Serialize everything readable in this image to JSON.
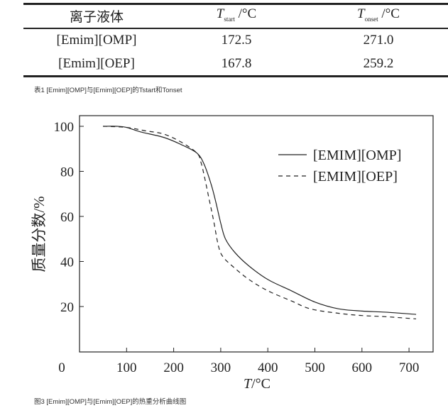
{
  "table": {
    "headers": [
      "离子液体",
      "T",
      "start",
      "/°C",
      "T",
      "onset",
      "/°C"
    ],
    "rows": [
      [
        "[Emim][OMP]",
        "172.5",
        "271.0"
      ],
      [
        "[Emim][OEP]",
        "167.8",
        "259.2"
      ]
    ],
    "caption": "表1 [Emim][OMP]与[Emim][OEP]的Tstart和Tonset"
  },
  "figure_caption": "图3 [Emim][OMP]与[Emim][OEP]的热重分析曲线图",
  "chart_data": {
    "type": "line",
    "xlabel_italic": "T",
    "xlabel_unit": "/°C",
    "ylabel": "质量分数/%",
    "xlim": [
      0,
      750
    ],
    "ylim": [
      5,
      105
    ],
    "xticks": [
      0,
      100,
      200,
      300,
      400,
      500,
      600,
      700
    ],
    "yticks": [
      20,
      40,
      60,
      80,
      100
    ],
    "grid": false,
    "legend_position": "top-right",
    "series": [
      {
        "name": "[EMIM][OMP]",
        "style": "solid",
        "x": [
          50,
          80,
          100,
          130,
          180,
          220,
          250,
          265,
          280,
          290,
          300,
          310,
          330,
          360,
          400,
          450,
          500,
          550,
          600,
          650,
          715
        ],
        "y": [
          100,
          100,
          99.5,
          97.5,
          95,
          91.5,
          88,
          83,
          74,
          66,
          57,
          50,
          44,
          38,
          32,
          27,
          22,
          19,
          18,
          17.5,
          16.5
        ]
      },
      {
        "name": "[EMIM][OEP]",
        "style": "dashed",
        "x": [
          50,
          100,
          140,
          180,
          220,
          250,
          258,
          265,
          275,
          285,
          295,
          305,
          330,
          360,
          400,
          450,
          490,
          550,
          600,
          650,
          715
        ],
        "y": [
          100,
          99.5,
          98,
          96.5,
          92.5,
          88,
          84,
          78,
          68,
          58,
          47,
          42,
          37,
          32,
          27,
          22.5,
          19,
          17,
          16,
          15.5,
          14.5
        ]
      }
    ]
  }
}
